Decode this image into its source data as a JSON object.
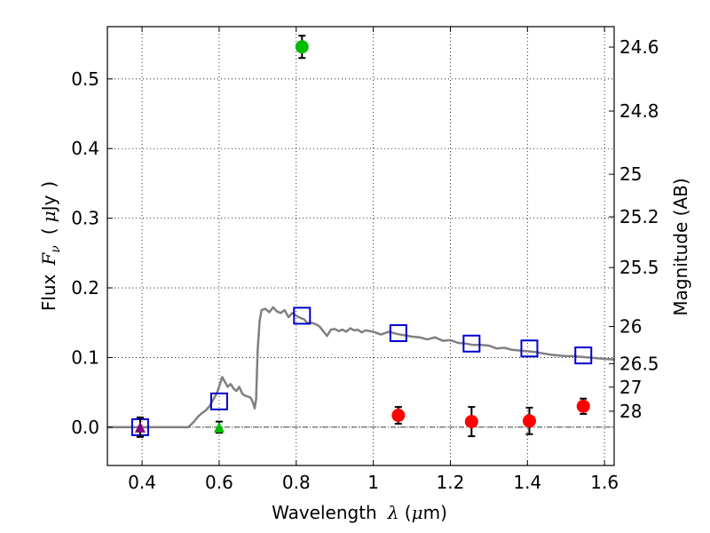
{
  "chart_data": {
    "type": "scatter",
    "title": "",
    "xlabel": "Wavelength",
    "xlabel_symbol": "λ",
    "xlabel_unit_open": " (",
    "xlabel_unit_mu": "μ",
    "xlabel_unit_rest": "m)",
    "ylabel_prefix": "Flux",
    "ylabel_symbol": "F",
    "ylabel_sub": "ν",
    "ylabel_unit_open": "(",
    "ylabel_unit_mu": "μ",
    "ylabel_unit_rest": "Jy",
    "ylabel_unit_close": ")",
    "y2label": "Magnitude (AB)",
    "xlim": [
      0.31,
      1.625
    ],
    "ylim": [
      -0.055,
      0.575
    ],
    "grid": true,
    "x_ticks": [
      {
        "value": 0.4,
        "label": "0.4"
      },
      {
        "value": 0.6,
        "label": "0.6"
      },
      {
        "value": 0.8,
        "label": "0.8"
      },
      {
        "value": 1.0,
        "label": "1"
      },
      {
        "value": 1.2,
        "label": "1.2"
      },
      {
        "value": 1.4,
        "label": "1.4"
      },
      {
        "value": 1.6,
        "label": "1.6"
      }
    ],
    "y_ticks": [
      {
        "value": 0.0,
        "label": "0.0"
      },
      {
        "value": 0.1,
        "label": "0.1"
      },
      {
        "value": 0.2,
        "label": "0.2"
      },
      {
        "value": 0.3,
        "label": "0.3"
      },
      {
        "value": 0.4,
        "label": "0.4"
      },
      {
        "value": 0.5,
        "label": "0.5"
      }
    ],
    "y2_ticks": [
      {
        "flux": 0.5456,
        "label": "24.6"
      },
      {
        "flux": 0.4538,
        "label": "24.8"
      },
      {
        "flux": 0.3631,
        "label": "25"
      },
      {
        "flux": 0.302,
        "label": "25.2"
      },
      {
        "flux": 0.2291,
        "label": "25.5"
      },
      {
        "flux": 0.1445,
        "label": "26"
      },
      {
        "flux": 0.0912,
        "label": "26.5"
      },
      {
        "flux": 0.0575,
        "label": "27"
      },
      {
        "flux": 0.0229,
        "label": "28"
      }
    ],
    "zero_line": 0.0,
    "series": [
      {
        "name": "model_sed",
        "kind": "line",
        "color": "#808080",
        "x": [
          0.31,
          0.52,
          0.535,
          0.545,
          0.555,
          0.565,
          0.575,
          0.585,
          0.595,
          0.602,
          0.608,
          0.615,
          0.622,
          0.63,
          0.638,
          0.645,
          0.652,
          0.66,
          0.668,
          0.675,
          0.682,
          0.688,
          0.692,
          0.696,
          0.7,
          0.705,
          0.71,
          0.72,
          0.73,
          0.74,
          0.75,
          0.76,
          0.77,
          0.78,
          0.79,
          0.8,
          0.81,
          0.82,
          0.83,
          0.84,
          0.85,
          0.86,
          0.87,
          0.88,
          0.89,
          0.9,
          0.91,
          0.92,
          0.93,
          0.94,
          0.95,
          0.96,
          0.97,
          0.98,
          0.99,
          1.0,
          1.02,
          1.04,
          1.06,
          1.08,
          1.1,
          1.12,
          1.14,
          1.16,
          1.18,
          1.2,
          1.22,
          1.24,
          1.26,
          1.28,
          1.3,
          1.32,
          1.34,
          1.36,
          1.38,
          1.4,
          1.42,
          1.44,
          1.46,
          1.48,
          1.5,
          1.52,
          1.54,
          1.56,
          1.58,
          1.6,
          1.625
        ],
        "y": [
          0.0,
          0.0,
          0.008,
          0.015,
          0.02,
          0.024,
          0.03,
          0.04,
          0.05,
          0.062,
          0.072,
          0.065,
          0.058,
          0.062,
          0.055,
          0.052,
          0.058,
          0.048,
          0.045,
          0.044,
          0.042,
          0.035,
          0.027,
          0.04,
          0.11,
          0.152,
          0.168,
          0.17,
          0.165,
          0.172,
          0.166,
          0.164,
          0.168,
          0.158,
          0.164,
          0.16,
          0.157,
          0.155,
          0.149,
          0.15,
          0.148,
          0.145,
          0.138,
          0.131,
          0.14,
          0.141,
          0.138,
          0.14,
          0.137,
          0.142,
          0.139,
          0.14,
          0.136,
          0.139,
          0.138,
          0.137,
          0.133,
          0.137,
          0.134,
          0.132,
          0.13,
          0.129,
          0.126,
          0.129,
          0.124,
          0.125,
          0.121,
          0.12,
          0.118,
          0.118,
          0.117,
          0.113,
          0.114,
          0.111,
          0.11,
          0.109,
          0.108,
          0.106,
          0.104,
          0.103,
          0.102,
          0.102,
          0.101,
          0.1,
          0.099,
          0.098,
          0.097
        ]
      },
      {
        "name": "model_bands",
        "kind": "open-square",
        "color": "#0000cc",
        "x": [
          0.395,
          0.6,
          0.815,
          1.065,
          1.255,
          1.405,
          1.545
        ],
        "y": [
          0.0,
          0.037,
          0.16,
          0.135,
          0.12,
          0.113,
          0.103
        ]
      },
      {
        "name": "red_detections",
        "kind": "circle",
        "color": "#ff0000",
        "x": [
          1.065,
          1.255,
          1.405,
          1.545
        ],
        "y": [
          0.017,
          0.008,
          0.009,
          0.03
        ],
        "yerr": [
          0.012,
          0.021,
          0.019,
          0.011
        ]
      },
      {
        "name": "green_detection",
        "kind": "circle",
        "color": "#00bb00",
        "x": [
          0.815
        ],
        "y": [
          0.546
        ],
        "yerr": [
          0.016
        ]
      },
      {
        "name": "green_upper_limit",
        "kind": "triangle",
        "color": "#00bb00",
        "x": [
          0.6
        ],
        "y": [
          0.0
        ],
        "yerr": [
          0.008
        ]
      },
      {
        "name": "purple_upper_limit",
        "kind": "triangle",
        "color": "#800080",
        "x": [
          0.395
        ],
        "y": [
          0.0
        ],
        "yerr": [
          0.014
        ]
      }
    ]
  }
}
